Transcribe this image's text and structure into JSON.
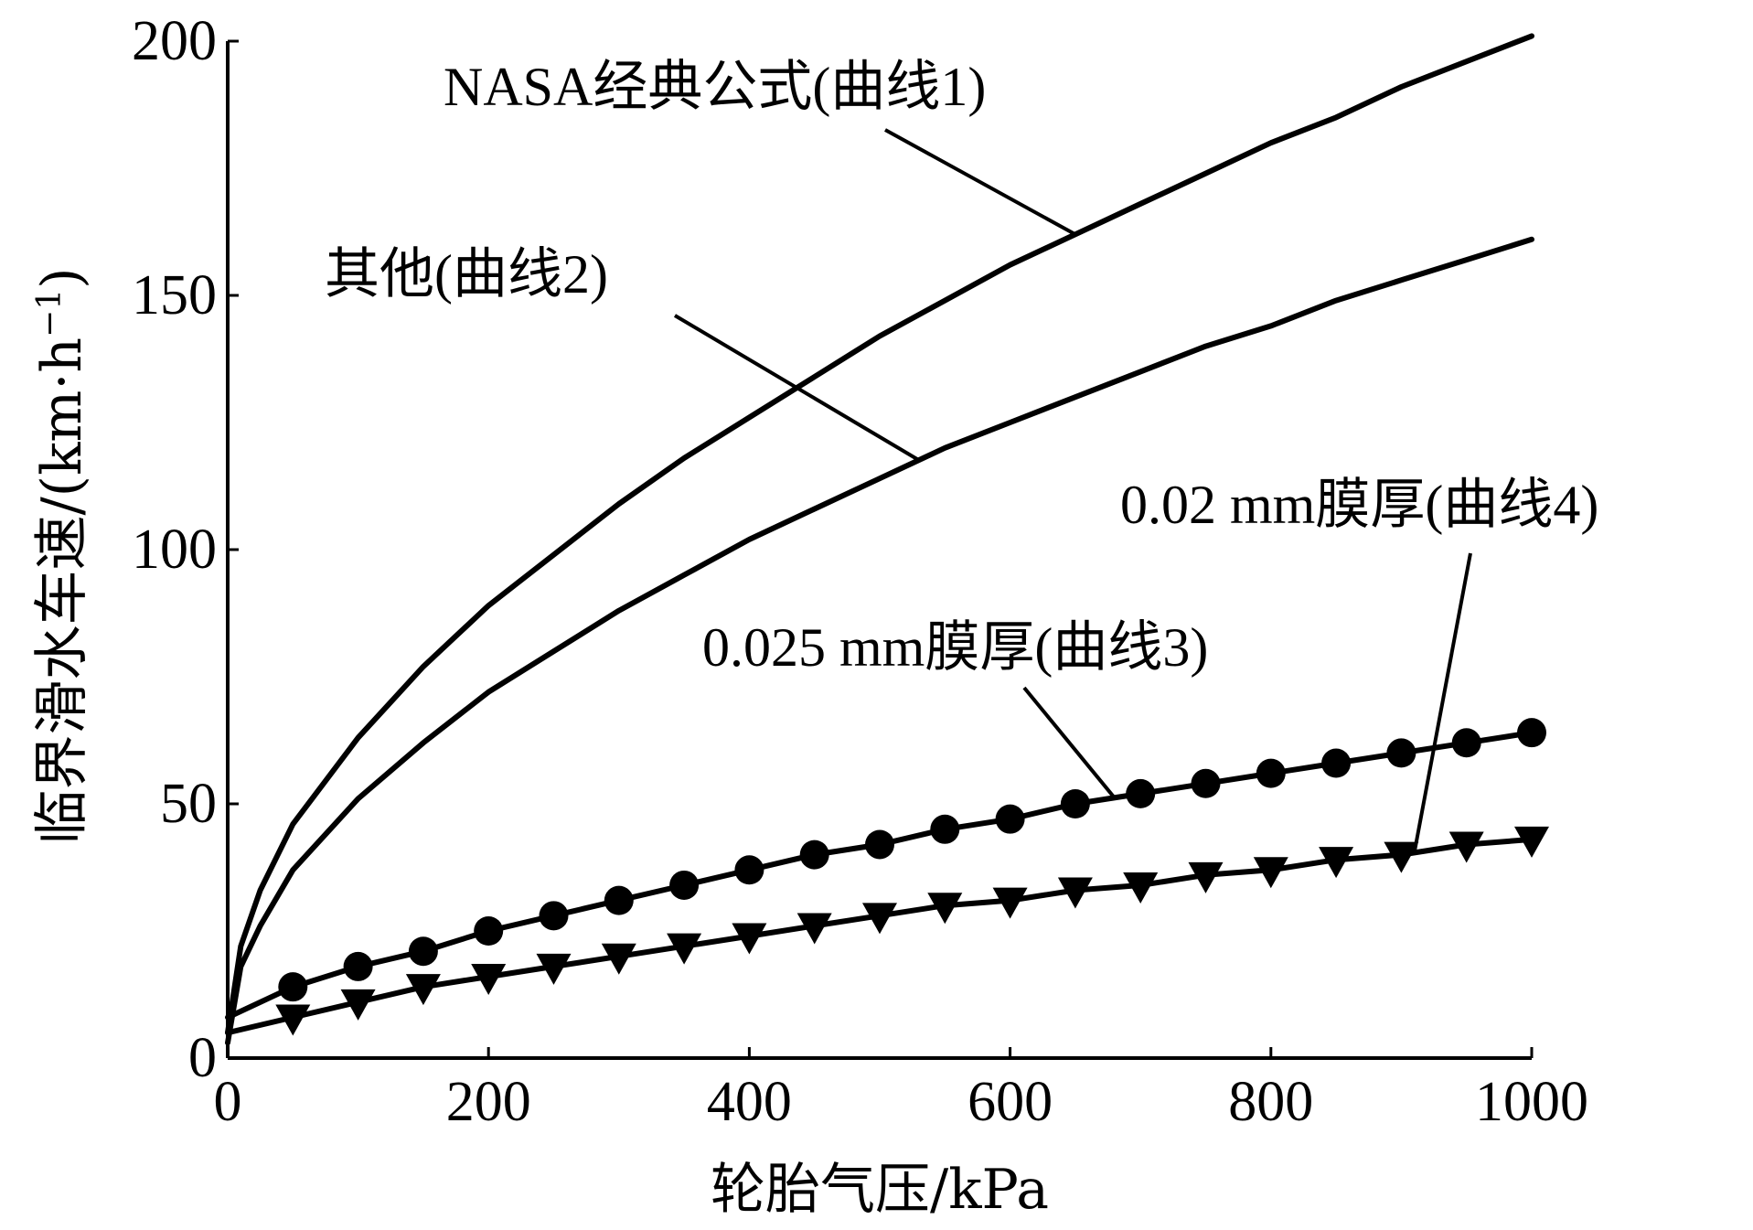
{
  "chart_data": {
    "type": "line",
    "title": "",
    "xlabel": "轮胎气压/kPa",
    "ylabel": {
      "prefix": "临界滑水车速/(km·h",
      "superscript": "−1",
      "suffix": ")"
    },
    "xlim": [
      0,
      1000
    ],
    "ylim": [
      0,
      200
    ],
    "xticks": [
      "0",
      "200",
      "400",
      "600",
      "800",
      "1000"
    ],
    "yticks": [
      "0",
      "50",
      "100",
      "150",
      "200"
    ],
    "grid": false,
    "legend": "none",
    "series": [
      {
        "name": "NASA经典公式(曲线1)",
        "marker": "none",
        "x": [
          0,
          10,
          25,
          50,
          100,
          150,
          200,
          250,
          300,
          350,
          400,
          450,
          500,
          550,
          600,
          650,
          700,
          750,
          800,
          850,
          900,
          950,
          1000
        ],
        "y": [
          5,
          22,
          33,
          46,
          63,
          77,
          89,
          99,
          109,
          118,
          126,
          134,
          142,
          149,
          156,
          162,
          168,
          174,
          180,
          185,
          191,
          196,
          201
        ]
      },
      {
        "name": "其他(曲线2)",
        "marker": "none",
        "x": [
          0,
          10,
          25,
          50,
          100,
          150,
          200,
          250,
          300,
          350,
          400,
          450,
          500,
          550,
          600,
          650,
          700,
          750,
          800,
          850,
          900,
          950,
          1000
        ],
        "y": [
          3,
          18,
          26,
          37,
          51,
          62,
          72,
          80,
          88,
          95,
          102,
          108,
          114,
          120,
          125,
          130,
          135,
          140,
          144,
          149,
          153,
          157,
          161
        ]
      },
      {
        "name": "0.025 mm膜厚(曲线3)",
        "marker": "circle",
        "x": [
          0,
          50,
          100,
          150,
          200,
          250,
          300,
          350,
          400,
          450,
          500,
          550,
          600,
          650,
          700,
          750,
          800,
          850,
          900,
          950,
          1000
        ],
        "y": [
          8,
          14,
          18,
          21,
          25,
          28,
          31,
          34,
          37,
          40,
          42,
          45,
          47,
          50,
          52,
          54,
          56,
          58,
          60,
          62,
          64
        ]
      },
      {
        "name": "0.02 mm膜厚(曲线4)",
        "marker": "triangle-down",
        "x": [
          0,
          50,
          100,
          150,
          200,
          250,
          300,
          350,
          400,
          450,
          500,
          550,
          600,
          650,
          700,
          750,
          800,
          850,
          900,
          950,
          1000
        ],
        "y": [
          5,
          8,
          11,
          14,
          16,
          18,
          20,
          22,
          24,
          26,
          28,
          30,
          31,
          33,
          34,
          36,
          37,
          39,
          40,
          42,
          43
        ]
      }
    ],
    "annotations": [
      {
        "text": "NASA经典公式(曲线1)",
        "series": 0,
        "at_x": 650
      },
      {
        "text": "其他(曲线2)",
        "series": 1,
        "at_x": 530
      },
      {
        "text": "0.025 mm膜厚(曲线3)",
        "series": 2,
        "at_x": 680
      },
      {
        "text": "0.02 mm膜厚(曲线4)",
        "series": 3,
        "at_x": 910
      }
    ]
  }
}
